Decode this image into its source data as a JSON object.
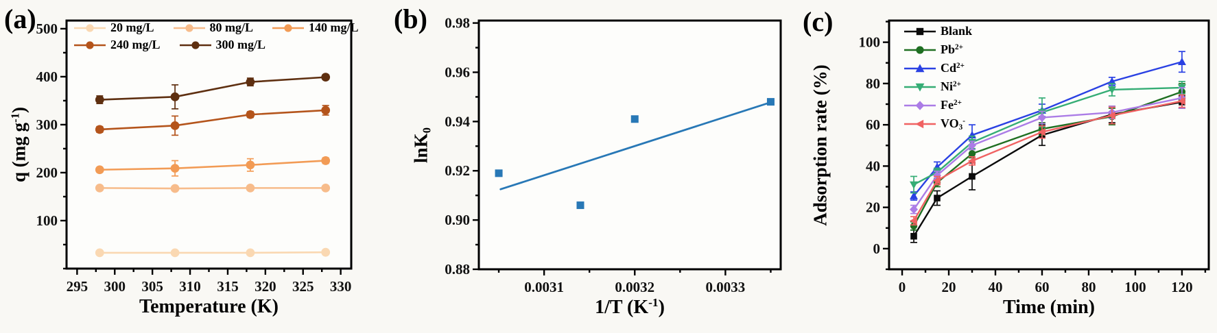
{
  "figure_title": "",
  "chart_data": [
    {
      "id": "a",
      "panel_label": "(a)",
      "type": "line",
      "xlabel_segments": [
        {
          "t": "Temperature (K)"
        }
      ],
      "ylabel_segments": [
        {
          "t": "q (mg g"
        },
        {
          "t": "-1",
          "sup": true
        },
        {
          "t": ")"
        }
      ],
      "xlim": [
        293.6,
        331.4
      ],
      "ylim": [
        0,
        517
      ],
      "xticks": {
        "values": [
          295,
          300,
          305,
          310,
          315,
          320,
          325,
          330
        ],
        "labels": [
          "295",
          "300",
          "305",
          "310",
          "315",
          "320",
          "325",
          "330"
        ],
        "minor_step": 2.5
      },
      "yticks": {
        "values": [
          100,
          200,
          300,
          400,
          500
        ],
        "labels": [
          "100",
          "200",
          "300",
          "400",
          "500"
        ],
        "minor_step": 50
      },
      "x": [
        298,
        308,
        318,
        328
      ],
      "series": [
        {
          "name": [
            {
              "t": "20 mg/L"
            }
          ],
          "color": "#FAD8B2",
          "marker": "circle",
          "values": [
            33,
            33,
            33,
            34
          ],
          "yerr": [
            2,
            2,
            2,
            2
          ]
        },
        {
          "name": [
            {
              "t": "80 mg/L"
            }
          ],
          "color": "#F7BC8B",
          "marker": "circle",
          "values": [
            168,
            167,
            168,
            168
          ],
          "yerr": [
            3,
            3,
            3,
            3
          ]
        },
        {
          "name": [
            {
              "t": "140 mg/L"
            }
          ],
          "color": "#F29B55",
          "marker": "circle",
          "values": [
            206,
            209,
            216,
            225
          ],
          "yerr": [
            5,
            16,
            13,
            6
          ]
        },
        {
          "name": [
            {
              "t": "240 mg/L"
            }
          ],
          "color": "#B4541B",
          "marker": "circle",
          "values": [
            290,
            298,
            321,
            330
          ],
          "yerr": [
            6,
            20,
            6,
            10
          ]
        },
        {
          "name": [
            {
              "t": "300 mg/L"
            }
          ],
          "color": "#5E2F10",
          "marker": "circle",
          "values": [
            352,
            358,
            389,
            399
          ],
          "yerr": [
            8,
            25,
            8,
            5
          ]
        }
      ],
      "legend": {
        "layout": "rows",
        "rows": [
          [
            0,
            1,
            2
          ],
          [
            3,
            4
          ]
        ]
      }
    },
    {
      "id": "b",
      "panel_label": "(b)",
      "type": "scatter",
      "xlabel_segments": [
        {
          "t": "1/T (K"
        },
        {
          "t": "-1",
          "sup": true
        },
        {
          "t": ")"
        }
      ],
      "ylabel_segments": [
        {
          "t": "lnK"
        },
        {
          "t": "0",
          "sub": true
        }
      ],
      "xlim": [
        0.003028,
        0.003361
      ],
      "ylim": [
        0.88,
        0.981
      ],
      "xticks": {
        "values": [
          0.0031,
          0.0032,
          0.0033
        ],
        "labels": [
          "0.0031",
          "0.0032",
          "0.0033"
        ],
        "minor_step": 5e-05
      },
      "yticks": {
        "values": [
          0.88,
          0.9,
          0.92,
          0.94,
          0.96,
          0.98
        ],
        "labels": [
          "0.88",
          "0.90",
          "0.92",
          "0.94",
          "0.96",
          "0.98"
        ],
        "minor_step": 0.01
      },
      "points": {
        "color": "#2878B6",
        "marker": "square",
        "x": [
          0.00305,
          0.00314,
          0.0032,
          0.00335
        ],
        "y": [
          0.919,
          0.906,
          0.941,
          0.948
        ]
      },
      "fit_line": {
        "color": "#2878B6",
        "from": [
          0.003052,
          0.9125
        ],
        "to": [
          0.00335,
          0.9478
        ]
      }
    },
    {
      "id": "c",
      "panel_label": "(c)",
      "type": "line",
      "xlabel_segments": [
        {
          "t": "Time (min)"
        }
      ],
      "ylabel_segments": [
        {
          "t": "Adsorption rate (%)"
        }
      ],
      "xlim": [
        -5.6,
        131.5
      ],
      "ylim": [
        -10,
        110.5
      ],
      "xticks": {
        "values": [
          0,
          20,
          40,
          60,
          80,
          100,
          120
        ],
        "labels": [
          "0",
          "20",
          "40",
          "60",
          "80",
          "100",
          "120"
        ],
        "minor_step": 10
      },
      "yticks": {
        "values": [
          0,
          20,
          40,
          60,
          80,
          100
        ],
        "labels": [
          "0",
          "20",
          "40",
          "60",
          "80",
          "100"
        ],
        "minor_step": 10
      },
      "x": [
        5,
        15,
        30,
        60,
        90,
        120
      ],
      "series": [
        {
          "name": [
            {
              "t": "Blank"
            }
          ],
          "color": "#0B0B0B",
          "marker": "square",
          "values": [
            6,
            24.5,
            35,
            55,
            65,
            71
          ],
          "yerr": [
            3,
            3.5,
            6.5,
            5,
            4,
            3
          ]
        },
        {
          "name": [
            {
              "t": "Pb"
            },
            {
              "t": "2+",
              "sup": true
            }
          ],
          "color": "#1F6F22",
          "marker": "circle",
          "values": [
            11,
            32,
            46,
            58,
            64,
            76
          ],
          "yerr": [
            2,
            2,
            2,
            3,
            4,
            4
          ]
        },
        {
          "name": [
            {
              "t": "Cd"
            },
            {
              "t": "2+",
              "sup": true
            }
          ],
          "color": "#2A41E3",
          "marker": "triangle-up",
          "values": [
            25.5,
            39.5,
            55,
            67,
            81,
            90.5
          ],
          "yerr": [
            2,
            2.5,
            5,
            3,
            2,
            5
          ]
        },
        {
          "name": [
            {
              "t": "Ni"
            },
            {
              "t": "2+",
              "sup": true
            }
          ],
          "color": "#35AD75",
          "marker": "triangle-down",
          "values": [
            31,
            37,
            51.5,
            66,
            77,
            78
          ],
          "yerr": [
            4,
            2,
            3,
            7,
            3,
            3
          ]
        },
        {
          "name": [
            {
              "t": "Fe"
            },
            {
              "t": "2+",
              "sup": true
            }
          ],
          "color": "#AB7CE6",
          "marker": "diamond",
          "values": [
            19,
            35.5,
            50,
            63.5,
            66,
            73
          ],
          "yerr": [
            2,
            2,
            2,
            3,
            3,
            5
          ]
        },
        {
          "name": [
            {
              "t": "VO"
            },
            {
              "t": "3",
              "sub": true
            },
            {
              "t": "-",
              "sup": true
            }
          ],
          "color": "#F06262",
          "marker": "triangle-left",
          "values": [
            13.5,
            33,
            42.5,
            56.5,
            64.5,
            71.5
          ],
          "yerr": [
            2,
            2,
            2,
            3,
            4,
            3
          ]
        }
      ],
      "legend": {
        "layout": "column"
      }
    }
  ]
}
